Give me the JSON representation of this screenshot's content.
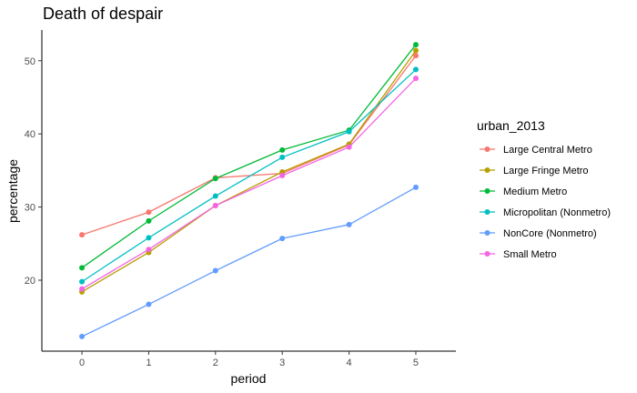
{
  "chart_data": {
    "type": "line",
    "title": "Death of despair",
    "xlabel": "period",
    "ylabel": "percentage",
    "x": [
      0,
      1,
      2,
      3,
      4,
      5
    ],
    "xlim": [
      -0.6,
      5.6
    ],
    "ylim": [
      10.3,
      54.2
    ],
    "yticks": [
      20,
      30,
      40,
      50
    ],
    "grid": false,
    "legend": {
      "title": "urban_2013",
      "placement": "right"
    },
    "series": [
      {
        "name": "Large Central Metro",
        "color": "#F8766D",
        "values": [
          26.2,
          29.3,
          34.0,
          34.6,
          38.5,
          50.7
        ]
      },
      {
        "name": "Large Fringe Metro",
        "color": "#B79F00",
        "values": [
          18.4,
          23.8,
          30.2,
          34.8,
          38.6,
          51.4
        ]
      },
      {
        "name": "Medium Metro",
        "color": "#00BA38",
        "values": [
          21.7,
          28.1,
          33.9,
          37.8,
          40.5,
          52.2
        ]
      },
      {
        "name": "Micropolitan (Nonmetro)",
        "color": "#00BFC4",
        "values": [
          19.8,
          25.8,
          31.5,
          36.8,
          40.3,
          48.8
        ]
      },
      {
        "name": "NonCore (Nonmetro)",
        "color": "#619CFF",
        "values": [
          12.3,
          16.7,
          21.3,
          25.7,
          27.6,
          32.7
        ]
      },
      {
        "name": "Small Metro",
        "color": "#F564E3",
        "values": [
          18.8,
          24.2,
          30.2,
          34.3,
          38.2,
          47.6
        ]
      }
    ]
  }
}
